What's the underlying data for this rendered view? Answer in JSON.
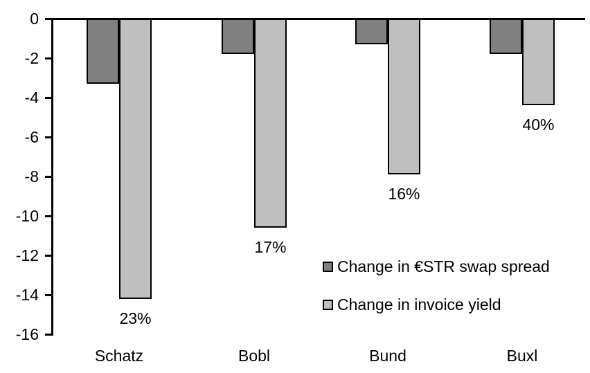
{
  "chart_data": {
    "type": "bar",
    "orientation": "vertical-negative",
    "categories": [
      "Schatz",
      "Bobl",
      "Bund",
      "Buxl"
    ],
    "series": [
      {
        "name": "Change in €STR swap spread",
        "color": "#808080",
        "values": [
          -3.3,
          -1.8,
          -1.3,
          -1.8
        ]
      },
      {
        "name": "Change in invoice yield",
        "color": "#BFBFBF",
        "values": [
          -14.2,
          -10.6,
          -7.9,
          -4.4
        ],
        "point_labels": [
          "23%",
          "17%",
          "16%",
          "40%"
        ]
      }
    ],
    "ylim": [
      -16,
      0
    ],
    "yticks": [
      0,
      -2,
      -4,
      -6,
      -8,
      -10,
      -12,
      -14,
      -16
    ],
    "grid": false,
    "legend_position": "inside-right-middle",
    "axis_color": "#000000",
    "text_color": "#000000",
    "bar_border_color": "#000000",
    "background_color": "#FFFFFF"
  }
}
